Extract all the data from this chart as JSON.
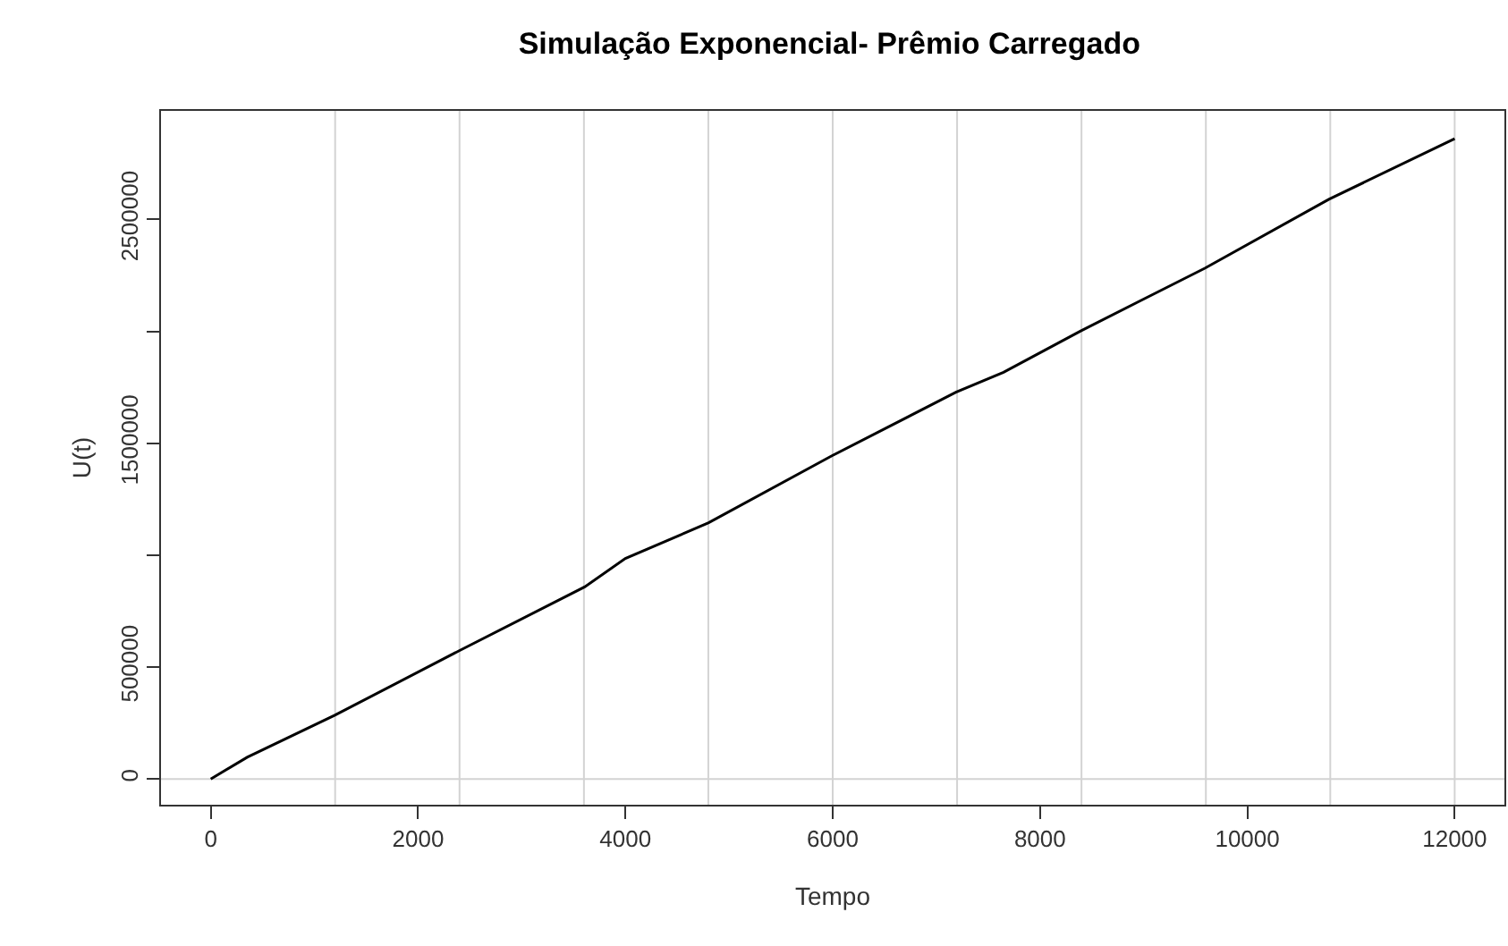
{
  "chart_data": {
    "type": "line",
    "title": "Simulação Exponencial- Prêmio Carregado",
    "xlabel": "Tempo",
    "ylabel": "U(t)",
    "x": [
      0,
      352,
      1197,
      2393,
      3607,
      4000,
      4803,
      5992,
      7189,
      7648,
      8393,
      9590,
      10787,
      12000
    ],
    "series": [
      {
        "color": "#000000",
        "values": [
          0,
          97000,
          285000,
          572000,
          858000,
          985000,
          1145000,
          1444000,
          1728000,
          1817000,
          2002000,
          2282000,
          2590000,
          2861000
        ]
      }
    ],
    "xlim": [
      -480,
      12480
    ],
    "ylim": [
      -115000,
      2985000
    ],
    "xticks": [
      0,
      2000,
      4000,
      6000,
      8000,
      10000,
      12000
    ],
    "yticks": [
      0,
      500000,
      {
        "value": 1000000,
        "label": null
      },
      1500000,
      {
        "value": 2000000,
        "label": null
      },
      2500000
    ],
    "ref_lines": [
      {
        "axis": "x",
        "value": 1200,
        "color": "#d3d3d3"
      },
      {
        "axis": "x",
        "value": 2400,
        "color": "#d3d3d3"
      },
      {
        "axis": "x",
        "value": 3600,
        "color": "#d3d3d3"
      },
      {
        "axis": "x",
        "value": 4800,
        "color": "#d3d3d3"
      },
      {
        "axis": "x",
        "value": 6000,
        "color": "#d3d3d3"
      },
      {
        "axis": "x",
        "value": 7200,
        "color": "#d3d3d3"
      },
      {
        "axis": "x",
        "value": 8400,
        "color": "#d3d3d3"
      },
      {
        "axis": "x",
        "value": 9600,
        "color": "#d3d3d3"
      },
      {
        "axis": "x",
        "value": 10800,
        "color": "#d3d3d3"
      },
      {
        "axis": "x",
        "value": 12000,
        "color": "#d3d3d3"
      },
      {
        "axis": "y",
        "value": 0,
        "color": "#d3d3d3"
      }
    ],
    "grid": false,
    "marker": "none",
    "line_style": "solid"
  }
}
